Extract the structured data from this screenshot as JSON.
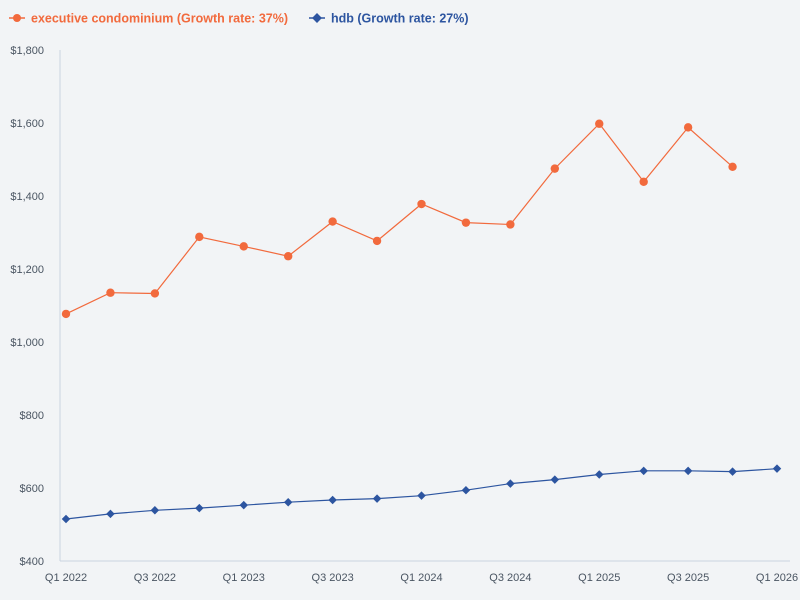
{
  "chart_data": {
    "type": "line",
    "title": "",
    "xlabel": "",
    "ylabel": "",
    "ylim": [
      400,
      1800
    ],
    "yticks": [
      "$400",
      "$600",
      "$800",
      "$1,000",
      "$1,200",
      "$1,400",
      "$1,600",
      "$1,800"
    ],
    "ytick_values": [
      400,
      600,
      800,
      1000,
      1200,
      1400,
      1600,
      1800
    ],
    "categories": [
      "Q1 2022",
      "Q2 2022",
      "Q3 2022",
      "Q4 2022",
      "Q1 2023",
      "Q2 2023",
      "Q3 2023",
      "Q4 2023",
      "Q1 2024",
      "Q2 2024",
      "Q3 2024",
      "Q4 2024",
      "Q1 2025",
      "Q2 2025",
      "Q3 2025",
      "Q4 2025",
      "Q1 2026"
    ],
    "xtick_labels": [
      "Q1 2022",
      "Q3 2022",
      "Q1 2023",
      "Q3 2023",
      "Q1 2024",
      "Q3 2024",
      "Q1 2025",
      "Q3 2025",
      "Q1 2026"
    ],
    "legend_position": "top-left",
    "series": [
      {
        "name": "executive condominium (Growth rate: 37%)",
        "color": "#f26a3d",
        "marker": "circle",
        "values": [
          1077,
          1135,
          1133,
          1288,
          1262,
          1235,
          1330,
          1277,
          1378,
          1327,
          1322,
          1475,
          1598,
          1439,
          1588,
          1480,
          null
        ]
      },
      {
        "name": "hdb (Growth rate: 27%)",
        "color": "#2d55a0",
        "marker": "diamond",
        "values": [
          515,
          529,
          539,
          545,
          553,
          561,
          567,
          571,
          579,
          594,
          612,
          623,
          637,
          647,
          647,
          645,
          653
        ]
      }
    ]
  }
}
